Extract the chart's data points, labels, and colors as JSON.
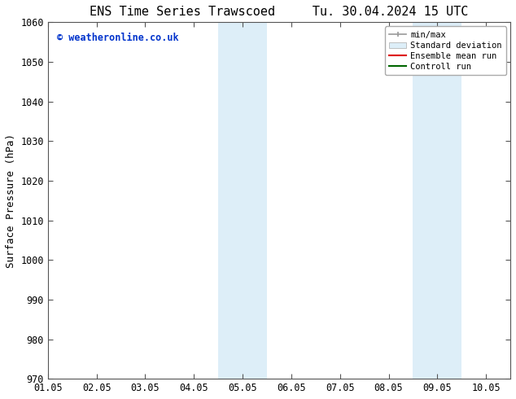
{
  "title_left": "ENS Time Series Trawscoed",
  "title_right": "Tu. 30.04.2024 15 UTC",
  "ylabel": "Surface Pressure (hPa)",
  "ylim": [
    970,
    1060
  ],
  "xlim": [
    0,
    9.5
  ],
  "yticks": [
    970,
    980,
    990,
    1000,
    1010,
    1020,
    1030,
    1040,
    1050,
    1060
  ],
  "xtick_labels": [
    "01.05",
    "02.05",
    "03.05",
    "04.05",
    "05.05",
    "06.05",
    "07.05",
    "08.05",
    "09.05",
    "10.05"
  ],
  "xtick_positions": [
    0,
    1,
    2,
    3,
    4,
    5,
    6,
    7,
    8,
    9
  ],
  "shaded_bands": [
    {
      "x_start": 3.5,
      "x_end": 4.5,
      "color": "#ddeef8"
    },
    {
      "x_start": 7.5,
      "x_end": 8.5,
      "color": "#ddeef8"
    }
  ],
  "watermark_text": "© weatheronline.co.uk",
  "watermark_color": "#0033cc",
  "background_color": "#ffffff",
  "title_fontsize": 11,
  "tick_label_fontsize": 8.5,
  "ylabel_fontsize": 9,
  "spine_color": "#555555",
  "tick_color": "#555555"
}
